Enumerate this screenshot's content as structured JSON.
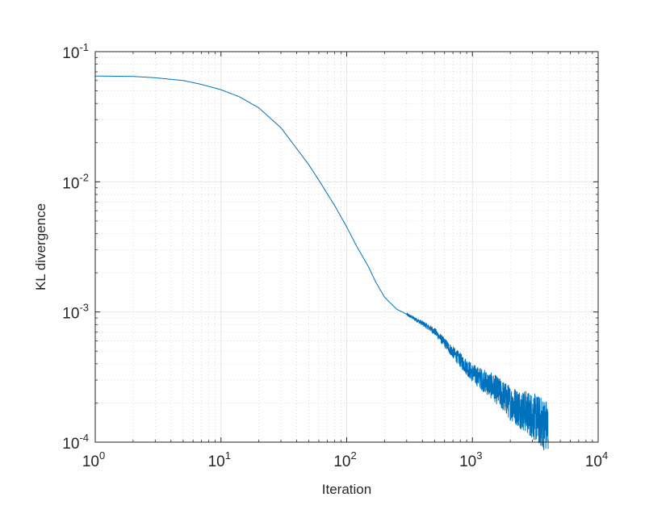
{
  "chart_data": {
    "type": "line",
    "title": "",
    "xlabel": "Iteration",
    "ylabel": "KL divergence",
    "xscale": "log",
    "yscale": "log",
    "xlim": [
      1,
      10000
    ],
    "ylim": [
      0.0001,
      0.1
    ],
    "grid": "major and minor (dotted)",
    "x_ticks": [
      {
        "value": 1,
        "base": "10",
        "exp": "0"
      },
      {
        "value": 10,
        "base": "10",
        "exp": "1"
      },
      {
        "value": 100,
        "base": "10",
        "exp": "2"
      },
      {
        "value": 1000,
        "base": "10",
        "exp": "3"
      },
      {
        "value": 10000,
        "base": "10",
        "exp": "4"
      }
    ],
    "y_ticks": [
      {
        "value": 0.0001,
        "base": "10",
        "exp": "-4"
      },
      {
        "value": 0.001,
        "base": "10",
        "exp": "-3"
      },
      {
        "value": 0.01,
        "base": "10",
        "exp": "-2"
      },
      {
        "value": 0.1,
        "base": "10",
        "exp": "-1"
      }
    ],
    "series": [
      {
        "color": "#0072bd",
        "points": [
          [
            1,
            0.065
          ],
          [
            2,
            0.0645
          ],
          [
            3,
            0.063
          ],
          [
            5,
            0.06
          ],
          [
            7,
            0.056
          ],
          [
            10,
            0.051
          ],
          [
            14,
            0.045
          ],
          [
            20,
            0.037
          ],
          [
            30,
            0.026
          ],
          [
            40,
            0.018
          ],
          [
            50,
            0.0135
          ],
          [
            60,
            0.0103
          ],
          [
            70,
            0.0081
          ],
          [
            80,
            0.0066
          ],
          [
            100,
            0.0045
          ],
          [
            120,
            0.0032
          ],
          [
            150,
            0.0022
          ],
          [
            170,
            0.0017
          ],
          [
            200,
            0.0013
          ],
          [
            250,
            0.00105
          ],
          [
            300,
            0.00096
          ],
          [
            400,
            0.00082
          ],
          [
            500,
            0.00071
          ],
          [
            700,
            0.00049
          ],
          [
            1000,
            0.00034
          ],
          [
            1500,
            0.00026
          ],
          [
            2000,
            0.0002
          ],
          [
            3000,
            0.00016
          ],
          [
            4000,
            0.00013
          ]
        ],
        "noise_from_x": 300
      }
    ]
  }
}
